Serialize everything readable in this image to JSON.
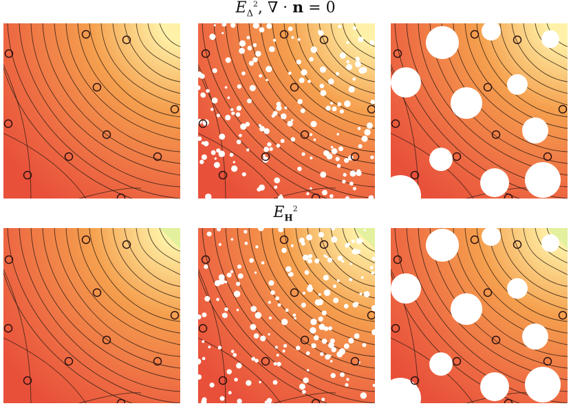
{
  "rows": [
    {
      "title": {
        "E": "E",
        "sub": "Δ",
        "sup": "2",
        "rest": ", ∇ · ",
        "n": "n",
        "eq": " = 0"
      }
    },
    {
      "title": {
        "E": "E",
        "sub": "H",
        "sup": "2"
      }
    }
  ],
  "colors": {
    "low": "#e8503a",
    "mid": "#f5a04e",
    "high": "#fff2a8",
    "corner_green": "#d9ef9a",
    "contour": "#2a1c14",
    "marker": "#2a1010",
    "hole": "#ffffff"
  },
  "panels": [
    {
      "name": "row1-sparse-samples",
      "markers": [
        [
          125,
          50
        ],
        [
          184,
          58
        ],
        [
          13,
          78
        ],
        [
          141,
          127
        ],
        [
          254,
          159
        ],
        [
          12,
          180
        ],
        [
          155,
          196
        ],
        [
          100,
          228
        ],
        [
          229,
          228
        ],
        [
          40,
          255
        ],
        [
          176,
          288
        ]
      ],
      "holes": []
    },
    {
      "name": "row1-dense-samples",
      "markers": [
        [
          413,
          50
        ],
        [
          471,
          58
        ],
        [
          299,
          78
        ],
        [
          428,
          127
        ],
        [
          540,
          159
        ],
        [
          295,
          180
        ],
        [
          443,
          196
        ],
        [
          386,
          228
        ],
        [
          516,
          228
        ],
        [
          324,
          255
        ],
        [
          459,
          288
        ]
      ],
      "holes": "dense"
    },
    {
      "name": "row1-large-holes",
      "markers": [
        [
          690,
          50
        ],
        [
          752,
          58
        ],
        [
          578,
          78
        ],
        [
          709,
          127
        ],
        [
          818,
          159
        ],
        [
          575,
          180
        ],
        [
          721,
          196
        ],
        [
          664,
          228
        ],
        [
          796,
          228
        ],
        [
          603,
          255
        ],
        [
          739,
          288
        ]
      ],
      "holes": [
        [
          643,
          62,
          24
        ],
        [
          714,
          45,
          14
        ],
        [
          800,
          57,
          13
        ],
        [
          590,
          120,
          22
        ],
        [
          678,
          150,
          23
        ],
        [
          752,
          123,
          15
        ],
        [
          778,
          190,
          19
        ],
        [
          641,
          232,
          17
        ],
        [
          719,
          266,
          21
        ],
        [
          789,
          262,
          26
        ],
        [
          582,
          285,
          30
        ]
      ]
    },
    {
      "name": "row2-sparse-samples",
      "markers": [
        [
          125,
          349
        ],
        [
          184,
          356
        ],
        [
          13,
          378
        ],
        [
          141,
          426
        ],
        [
          254,
          459
        ],
        [
          12,
          478
        ],
        [
          155,
          495
        ],
        [
          100,
          526
        ],
        [
          229,
          526
        ],
        [
          40,
          554
        ],
        [
          176,
          587
        ]
      ],
      "holes": []
    },
    {
      "name": "row2-dense-samples",
      "markers": [
        [
          413,
          349
        ],
        [
          471,
          356
        ],
        [
          299,
          378
        ],
        [
          428,
          426
        ],
        [
          540,
          459
        ],
        [
          295,
          478
        ],
        [
          443,
          495
        ],
        [
          386,
          526
        ],
        [
          516,
          526
        ],
        [
          324,
          554
        ],
        [
          459,
          587
        ]
      ],
      "holes": "dense"
    },
    {
      "name": "row2-large-holes",
      "markers": [
        [
          690,
          349
        ],
        [
          752,
          356
        ],
        [
          578,
          378
        ],
        [
          709,
          426
        ],
        [
          818,
          459
        ],
        [
          575,
          478
        ],
        [
          721,
          495
        ],
        [
          664,
          526
        ],
        [
          796,
          526
        ],
        [
          603,
          554
        ],
        [
          739,
          587
        ]
      ],
      "holes": [
        [
          643,
          357,
          24
        ],
        [
          714,
          344,
          14
        ],
        [
          800,
          354,
          13
        ],
        [
          590,
          420,
          22
        ],
        [
          678,
          450,
          23
        ],
        [
          752,
          420,
          15
        ],
        [
          778,
          490,
          19
        ],
        [
          641,
          530,
          17
        ],
        [
          719,
          563,
          21
        ],
        [
          789,
          560,
          26
        ],
        [
          582,
          580,
          30
        ]
      ]
    }
  ]
}
